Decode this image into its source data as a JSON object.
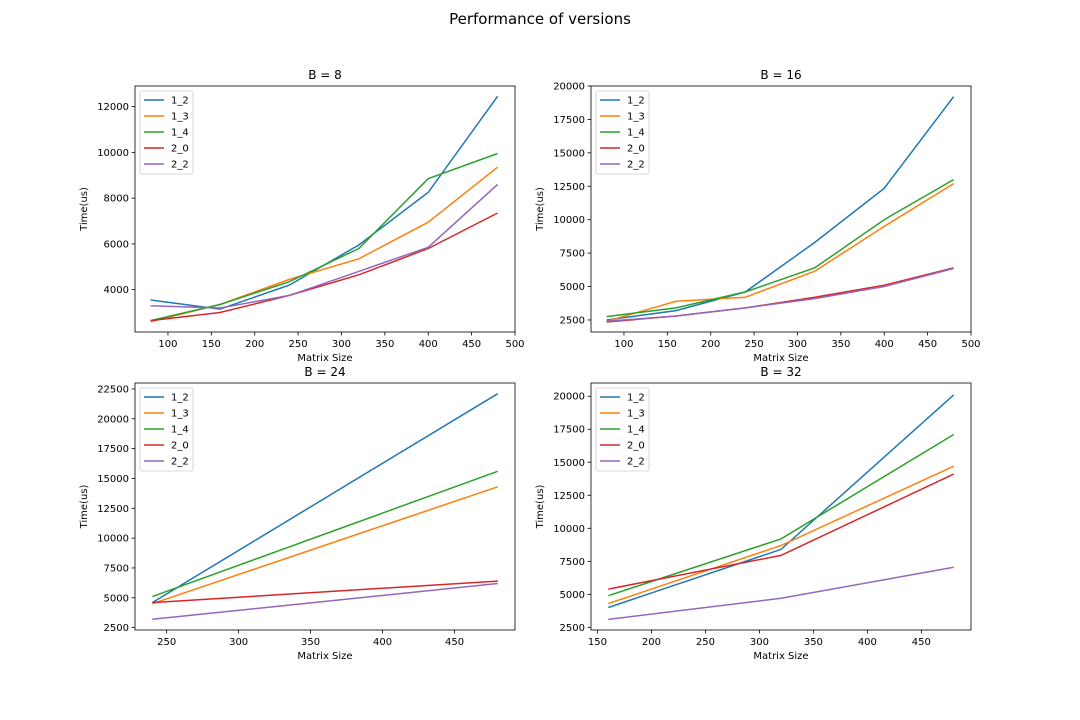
{
  "figure": {
    "title": "Performance of versions"
  },
  "colors": {
    "1_2": "#1f77b4",
    "1_3": "#ff7f0e",
    "1_4": "#2ca02c",
    "2_0": "#d62728",
    "2_2": "#9467bd"
  },
  "chart_data": [
    {
      "type": "line",
      "title": "B = 8",
      "xlabel": "Matrix Size",
      "ylabel": "Time(us)",
      "xlim": [
        62,
        500
      ],
      "ylim": [
        2150,
        12900
      ],
      "xticks": [
        100,
        150,
        200,
        250,
        300,
        350,
        400,
        450,
        500
      ],
      "yticks": [
        4000,
        6000,
        8000,
        10000,
        12000
      ],
      "legend": "top-left",
      "grid": false,
      "x": [
        80,
        160,
        240,
        320,
        400,
        480
      ],
      "series": [
        {
          "name": "1_2",
          "values": [
            3550,
            3150,
            4200,
            5950,
            8250,
            12450
          ]
        },
        {
          "name": "1_3",
          "values": [
            2600,
            3350,
            4450,
            5350,
            6950,
            9350
          ]
        },
        {
          "name": "1_4",
          "values": [
            2650,
            3350,
            4350,
            5800,
            8850,
            9950
          ]
        },
        {
          "name": "2_0",
          "values": [
            2650,
            3000,
            3750,
            4650,
            5800,
            7350
          ]
        },
        {
          "name": "2_2",
          "values": [
            3300,
            3200,
            3750,
            4800,
            5850,
            8600
          ]
        }
      ]
    },
    {
      "type": "line",
      "title": "B = 16",
      "xlabel": "Matrix Size",
      "ylabel": "Time(us)",
      "xlim": [
        62,
        500
      ],
      "ylim": [
        1600,
        20000
      ],
      "xticks": [
        100,
        150,
        200,
        250,
        300,
        350,
        400,
        450,
        500
      ],
      "yticks": [
        2500,
        5000,
        7500,
        10000,
        12500,
        15000,
        17500,
        20000
      ],
      "legend": "top-left",
      "grid": false,
      "x": [
        80,
        160,
        240,
        320,
        400,
        480
      ],
      "series": [
        {
          "name": "1_2",
          "values": [
            2500,
            3200,
            4600,
            8300,
            12350,
            19200
          ]
        },
        {
          "name": "1_3",
          "values": [
            2400,
            3900,
            4200,
            6150,
            9500,
            12700
          ]
        },
        {
          "name": "1_4",
          "values": [
            2750,
            3400,
            4600,
            6400,
            10000,
            13000
          ]
        },
        {
          "name": "2_0",
          "values": [
            2350,
            2800,
            3400,
            4200,
            5100,
            6400
          ]
        },
        {
          "name": "2_2",
          "values": [
            2400,
            2800,
            3400,
            4100,
            5000,
            6350
          ]
        }
      ]
    },
    {
      "type": "line",
      "title": "B = 24",
      "xlabel": "Matrix Size",
      "ylabel": "Time(us)",
      "xlim": [
        228,
        492
      ],
      "ylim": [
        2300,
        23000
      ],
      "xticks": [
        250,
        300,
        350,
        400,
        450
      ],
      "yticks": [
        2500,
        5000,
        7500,
        10000,
        12500,
        15000,
        17500,
        20000,
        22500
      ],
      "legend": "top-left",
      "grid": false,
      "x": [
        240,
        480
      ],
      "series": [
        {
          "name": "1_2",
          "values": [
            4600,
            22100
          ]
        },
        {
          "name": "1_3",
          "values": [
            4500,
            14300
          ]
        },
        {
          "name": "1_4",
          "values": [
            5100,
            15600
          ]
        },
        {
          "name": "2_0",
          "values": [
            4600,
            6400
          ]
        },
        {
          "name": "2_2",
          "values": [
            3200,
            6200
          ]
        }
      ]
    },
    {
      "type": "line",
      "title": "B = 32",
      "xlabel": "Matrix Size",
      "ylabel": "Time(us)",
      "xlim": [
        144,
        496
      ],
      "ylim": [
        2300,
        21000
      ],
      "xticks": [
        150,
        200,
        250,
        300,
        350,
        400,
        450
      ],
      "yticks": [
        2500,
        5000,
        7500,
        10000,
        12500,
        15000,
        17500,
        20000
      ],
      "legend": "top-left",
      "grid": false,
      "x": [
        160,
        320,
        480
      ],
      "series": [
        {
          "name": "1_2",
          "values": [
            4000,
            8400,
            20100
          ]
        },
        {
          "name": "1_3",
          "values": [
            4300,
            8700,
            14700
          ]
        },
        {
          "name": "1_4",
          "values": [
            4900,
            9200,
            17100
          ]
        },
        {
          "name": "2_0",
          "values": [
            5400,
            7950,
            14100
          ]
        },
        {
          "name": "2_2",
          "values": [
            3100,
            4700,
            7050
          ]
        }
      ]
    }
  ]
}
